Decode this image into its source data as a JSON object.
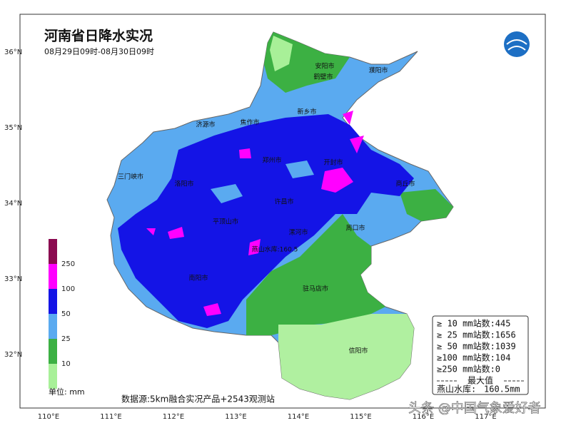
{
  "header": {
    "title": "河南省日降水实况",
    "subtitle": "08月29日09时-08月30日09时"
  },
  "lat_labels": [
    "36°N",
    "35°N",
    "34°N",
    "33°N",
    "32°N"
  ],
  "lon_labels": [
    "110°E",
    "111°E",
    "112°E",
    "113°E",
    "114°E",
    "115°E",
    "116°E",
    "117°E"
  ],
  "legend": {
    "levels": [
      250,
      100,
      50,
      25,
      10
    ],
    "unit": "单位: mm"
  },
  "cities": [
    "安阳市",
    "濮阳市",
    "鹤壁市",
    "新乡市",
    "焦作市",
    "济源市",
    "郑州市",
    "开封市",
    "三门峡市",
    "洛阳市",
    "商丘市",
    "许昌市",
    "平顶山市",
    "漯河市",
    "周口市",
    "南阳市",
    "驻马店市",
    "信阳市",
    "燕山水库:160.5"
  ],
  "source": "数据源:5km融合实况产品+2543观测站",
  "stats": {
    "lines": [
      "≥ 10 mm站数:445",
      "≥ 25 mm站数:1656",
      "≥ 50 mm站数:1039",
      "≥100 mm站数:104",
      "≥250 mm站数:0"
    ],
    "max_heading": "最大值",
    "max_station": "燕山水库:",
    "max_value": "160.5mm"
  },
  "watermark": "头条 @中国气象爱好者"
}
